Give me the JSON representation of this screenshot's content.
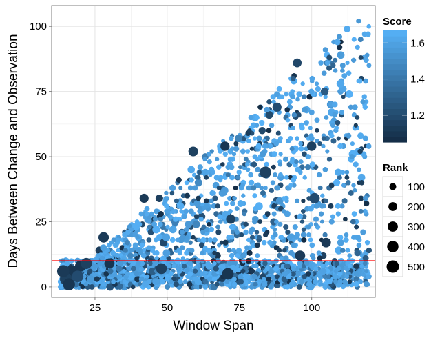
{
  "chart_data": {
    "type": "scatter",
    "xlabel": "Window Span",
    "ylabel": "Days Between Change and Observation",
    "xlim": [
      10,
      122
    ],
    "ylim": [
      -4,
      108
    ],
    "x_ticks": [
      25,
      50,
      75,
      100
    ],
    "y_ticks": [
      0,
      25,
      50,
      75,
      100
    ],
    "grid": true,
    "reference_line": {
      "y": 10,
      "color": "#ff0000"
    },
    "legend_position": "right",
    "color_legend": {
      "title": "Score",
      "ticks": [
        1.2,
        1.4,
        1.6
      ],
      "range": [
        1.05,
        1.67
      ],
      "low_color": "#132B43",
      "high_color": "#56B1F7"
    },
    "size_legend": {
      "title": "Rank",
      "values": [
        100,
        200,
        300,
        400,
        500
      ]
    },
    "highlighted_points": [
      {
        "x": 84,
        "y": 44,
        "score": 1.15,
        "rank": 420
      },
      {
        "x": 71,
        "y": 5,
        "score": 1.1,
        "rank": 420
      },
      {
        "x": 48,
        "y": 7,
        "score": 1.15,
        "rank": 350
      },
      {
        "x": 28,
        "y": 19,
        "score": 1.12,
        "rank": 320
      },
      {
        "x": 30,
        "y": 9,
        "score": 1.1,
        "rank": 300
      },
      {
        "x": 101,
        "y": 34,
        "score": 1.2,
        "rank": 320
      },
      {
        "x": 96,
        "y": 12,
        "score": 1.12,
        "rank": 300
      },
      {
        "x": 105,
        "y": 17,
        "score": 1.12,
        "rank": 260
      },
      {
        "x": 59,
        "y": 52,
        "score": 1.15,
        "rank": 260
      },
      {
        "x": 70,
        "y": 54,
        "score": 1.1,
        "rank": 230
      },
      {
        "x": 100,
        "y": 54,
        "score": 1.15,
        "rank": 240
      },
      {
        "x": 88,
        "y": 69,
        "score": 1.2,
        "rank": 220
      },
      {
        "x": 95,
        "y": 86,
        "score": 1.18,
        "rank": 200
      },
      {
        "x": 72,
        "y": 26,
        "score": 1.15,
        "rank": 240
      },
      {
        "x": 42,
        "y": 34,
        "score": 1.12,
        "rank": 220
      },
      {
        "x": 20,
        "y": 8,
        "score": 1.1,
        "rank": 380
      },
      {
        "x": 17,
        "y": 6,
        "score": 1.1,
        "rank": 460
      },
      {
        "x": 15,
        "y": 3,
        "score": 1.15,
        "rank": 500
      },
      {
        "x": 14,
        "y": 6,
        "score": 1.12,
        "rank": 480
      },
      {
        "x": 16,
        "y": 1,
        "score": 1.1,
        "rank": 460
      },
      {
        "x": 22,
        "y": 9,
        "score": 1.15,
        "rank": 380
      },
      {
        "x": 19,
        "y": 4,
        "score": 1.2,
        "rank": 420
      }
    ],
    "background_cloud": {
      "description_of_density": "many small points filling triangle region y <= x - 10 (approx), dense band at y 0-10",
      "x_range": [
        13,
        120
      ],
      "y_range": [
        0,
        106
      ],
      "count": 2400
    }
  }
}
